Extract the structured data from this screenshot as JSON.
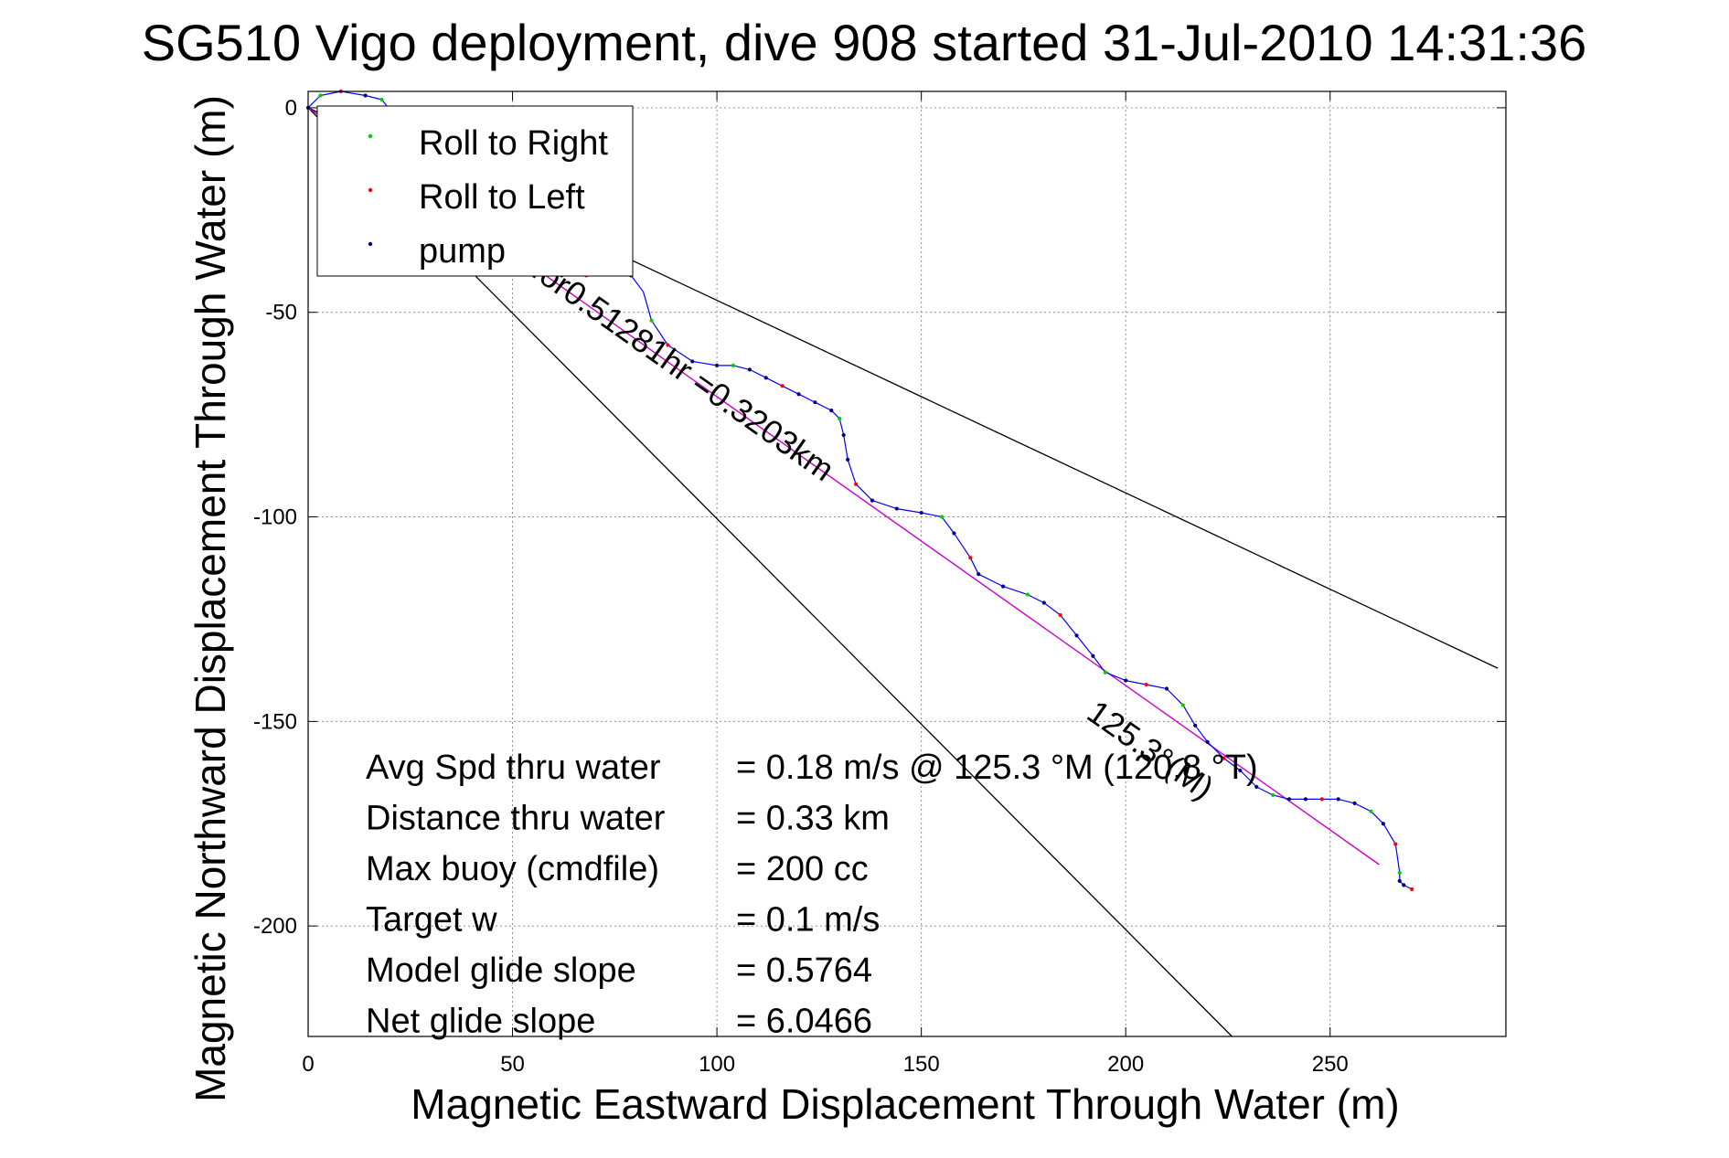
{
  "chart_data": {
    "type": "line",
    "title": "SG510 Vigo deployment, dive 908 started 31-Jul-2010 14:31:36",
    "xlabel": "Magnetic Eastward Displacement Through Water (m)",
    "ylabel": "Magnetic Northward Displacement Through Water (m)",
    "xlim": [
      0,
      293
    ],
    "ylim": [
      -227,
      4
    ],
    "xticks": [
      0,
      50,
      100,
      150,
      200,
      250
    ],
    "yticks": [
      0,
      -50,
      -100,
      -150,
      -200
    ],
    "xtick_labels": [
      "0",
      "50",
      "100",
      "150",
      "200",
      "250"
    ],
    "ytick_labels": [
      "0",
      "-50",
      "-100",
      "-150",
      "-200"
    ],
    "grid": true,
    "legend": {
      "placement": "top-left",
      "entries": [
        {
          "label": "Roll to Right",
          "color": "#00cc00"
        },
        {
          "label": "Roll to Left",
          "color": "#ff0000"
        },
        {
          "label": "pump",
          "color": "#000080"
        }
      ]
    },
    "colors": {
      "track": "#0000ff",
      "heading_line": "#cc00cc",
      "reference_lines": "#000000",
      "grid": "#808080"
    },
    "series": [
      {
        "name": "track",
        "x": [
          0,
          3,
          8,
          14,
          18,
          22,
          28,
          35,
          42,
          48,
          55,
          62,
          68,
          74,
          79,
          82,
          84,
          88,
          94,
          100,
          104,
          108,
          112,
          116,
          120,
          124,
          128,
          130,
          131,
          132,
          134,
          138,
          144,
          150,
          155,
          158,
          162,
          164,
          170,
          176,
          180,
          184,
          188,
          192,
          195,
          200,
          205,
          210,
          214,
          217,
          220,
          224,
          228,
          232,
          236,
          240,
          244,
          248,
          252,
          256,
          260,
          263,
          266,
          267,
          267,
          268,
          270
        ],
        "y": [
          0,
          3,
          4,
          3,
          2,
          -3,
          -10,
          -18,
          -26,
          -33,
          -38,
          -41,
          -41,
          -40,
          -41,
          -45,
          -52,
          -58,
          -62,
          -63,
          -63,
          -64,
          -66,
          -68,
          -70,
          -72,
          -74,
          -76,
          -80,
          -86,
          -92,
          -96,
          -98,
          -99,
          -100,
          -104,
          -110,
          -114,
          -117,
          -119,
          -121,
          -124,
          -129,
          -134,
          -138,
          -140,
          -141,
          -142,
          -146,
          -151,
          -155,
          -159,
          -162,
          -166,
          -168,
          -169,
          -169,
          -169,
          -169,
          -170,
          -172,
          -175,
          -180,
          -187,
          -189,
          -190,
          -191
        ]
      },
      {
        "name": "heading",
        "x": [
          0,
          262
        ],
        "y": [
          0,
          -185
        ]
      },
      {
        "name": "reference-upper",
        "x": [
          0,
          291
        ],
        "y": [
          0,
          -137
        ]
      },
      {
        "name": "reference-lower",
        "x": [
          0,
          226
        ],
        "y": [
          0,
          -227
        ]
      }
    ],
    "markers": {
      "roll_right": {
        "x": [
          3,
          18,
          35,
          55,
          74,
          84,
          104,
          130,
          155,
          176,
          195,
          214,
          236,
          260,
          267
        ],
        "y": [
          3,
          2,
          -18,
          -38,
          -40,
          -52,
          -63,
          -76,
          -100,
          -119,
          -138,
          -146,
          -168,
          -172,
          -187
        ]
      },
      "roll_left": {
        "x": [
          8,
          28,
          48,
          68,
          88,
          116,
          134,
          162,
          184,
          205,
          224,
          248,
          266,
          270
        ],
        "y": [
          4,
          -10,
          -33,
          -41,
          -58,
          -68,
          -92,
          -110,
          -124,
          -141,
          -159,
          -169,
          -180,
          -191
        ]
      },
      "pump": {
        "x": [
          0,
          14,
          22,
          42,
          62,
          79,
          94,
          100,
          108,
          112,
          120,
          124,
          128,
          131,
          132,
          138,
          144,
          150,
          158,
          164,
          170,
          180,
          188,
          192,
          200,
          210,
          217,
          220,
          228,
          232,
          240,
          244,
          252,
          256,
          263,
          267,
          268
        ],
        "y": [
          0,
          3,
          -3,
          -26,
          -41,
          -41,
          -62,
          -63,
          -64,
          -66,
          -70,
          -72,
          -74,
          -80,
          -86,
          -96,
          -98,
          -99,
          -104,
          -114,
          -117,
          -121,
          -129,
          -134,
          -140,
          -142,
          -151,
          -155,
          -162,
          -166,
          -169,
          -169,
          -169,
          -170,
          -175,
          -189,
          -190
        ]
      }
    },
    "annotations": [
      {
        "text": "125.3 °M for0.51281hr =0.3203km",
        "x": 26,
        "y": -21,
        "rotation_deg": 35.2
      },
      {
        "text": "125.3°(M)",
        "x": 190,
        "y": -149,
        "rotation_deg": 35.2
      }
    ],
    "stats": [
      {
        "label": "Avg Spd thru water",
        "value": "=  0.18 m/s @ 125.3 °M (120.8 °T)"
      },
      {
        "label": "Distance thru water",
        "value": "=  0.33 km"
      },
      {
        "label": "Max buoy (cmdfile)",
        "value": "= 200 cc"
      },
      {
        "label": "Target w",
        "value": "= 0.1 m/s"
      },
      {
        "label": "Model glide slope",
        "value": "= 0.5764"
      },
      {
        "label": "Net glide slope",
        "value": "= 6.0466"
      }
    ]
  }
}
